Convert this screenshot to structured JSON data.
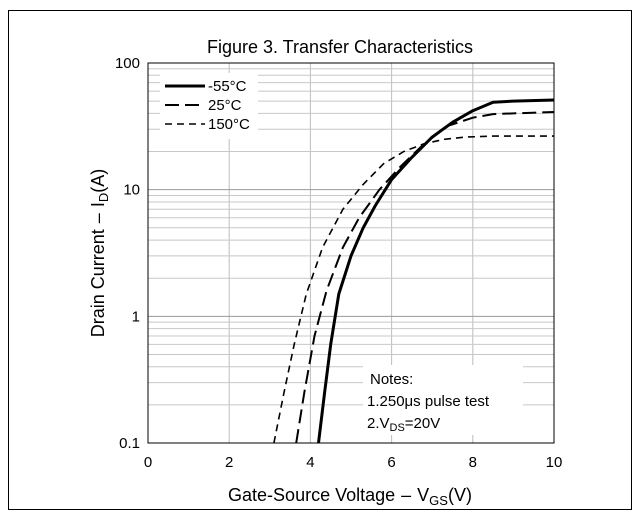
{
  "chart_data": {
    "type": "line",
    "title": "Figure 3. Transfer Characteristics",
    "xlabel": "Gate-Source Voltage",
    "xlabel_dash": "–",
    "xlabel_sym": "V",
    "xlabel_sub": "GS",
    "xlabel_unit": "(V)",
    "ylabel": "Drain Current",
    "ylabel_dash": "–",
    "ylabel_sym": "I",
    "ylabel_sub": "D",
    "ylabel_unit": "(A)",
    "xlim": [
      0,
      10
    ],
    "ylim": [
      0.1,
      100
    ],
    "y_scale": "log",
    "grid": true,
    "x_ticks": [
      "0",
      "2",
      "4",
      "6",
      "8",
      "10"
    ],
    "y_ticks": [
      "0.1",
      "1",
      "10",
      "100"
    ],
    "legend_position": "top-left",
    "series": [
      {
        "name": "-55°C",
        "style": "solid",
        "points": [
          [
            4.2,
            0.1
          ],
          [
            4.35,
            0.25
          ],
          [
            4.5,
            0.6
          ],
          [
            4.7,
            1.5
          ],
          [
            5.0,
            3
          ],
          [
            5.3,
            5
          ],
          [
            5.6,
            7.5
          ],
          [
            6.0,
            12
          ],
          [
            6.5,
            18
          ],
          [
            7.0,
            26
          ],
          [
            7.5,
            34
          ],
          [
            8.0,
            42
          ],
          [
            8.5,
            49
          ],
          [
            9.0,
            50
          ],
          [
            10.0,
            51
          ]
        ]
      },
      {
        "name": "25°C",
        "style": "dash",
        "points": [
          [
            3.65,
            0.1
          ],
          [
            3.85,
            0.25
          ],
          [
            4.1,
            0.7
          ],
          [
            4.4,
            1.6
          ],
          [
            4.8,
            3.5
          ],
          [
            5.2,
            6
          ],
          [
            5.7,
            10
          ],
          [
            6.2,
            15
          ],
          [
            6.8,
            23
          ],
          [
            7.4,
            32
          ],
          [
            8.0,
            37
          ],
          [
            8.5,
            39.5
          ],
          [
            9.0,
            40
          ],
          [
            10.0,
            41
          ]
        ]
      },
      {
        "name": "150°C",
        "style": "dash-fine",
        "points": [
          [
            3.1,
            0.1
          ],
          [
            3.35,
            0.25
          ],
          [
            3.6,
            0.6
          ],
          [
            3.9,
            1.5
          ],
          [
            4.3,
            3.5
          ],
          [
            4.8,
            7
          ],
          [
            5.3,
            11
          ],
          [
            5.8,
            16
          ],
          [
            6.3,
            20
          ],
          [
            6.8,
            23
          ],
          [
            7.3,
            25
          ],
          [
            7.8,
            26
          ],
          [
            8.5,
            26.5
          ],
          [
            10.0,
            26.5
          ]
        ]
      }
    ],
    "notes": {
      "heading": "Notes:",
      "line1": "1.250μs pulse test",
      "line2_pre": "2.V",
      "line2_sub": "DS",
      "line2_post": "=20V"
    }
  }
}
